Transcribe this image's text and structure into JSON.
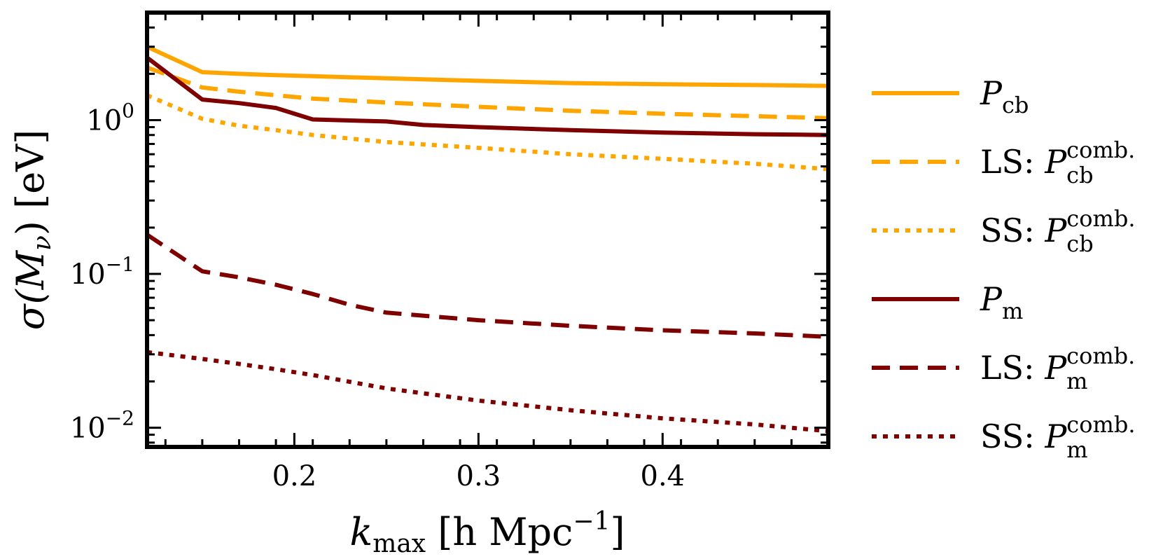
{
  "chart_data": {
    "type": "line",
    "xlabel_parts": {
      "k": "k",
      "max": "max",
      "unit": "[h Mpc",
      "exp": "−1",
      "close": "]"
    },
    "ylabel_parts": {
      "sigma": "σ(",
      "M": "M",
      "nu": "ν",
      "rest": ") [eV]"
    },
    "xlim": [
      0.12,
      0.49
    ],
    "ylim": [
      0.0075,
      5.0
    ],
    "yscale": "log",
    "x_ticks": [
      {
        "value": 0.2,
        "label": "0.2"
      },
      {
        "value": 0.3,
        "label": "0.3"
      },
      {
        "value": 0.4,
        "label": "0.4"
      }
    ],
    "y_ticks": [
      {
        "value": 1.0,
        "base": "10",
        "exp": "0"
      },
      {
        "value": 0.1,
        "base": "10",
        "exp": "−1"
      },
      {
        "value": 0.01,
        "base": "10",
        "exp": "−2"
      }
    ],
    "legend_position": "outside-right",
    "series": [
      {
        "name": "P_cb",
        "legend": {
          "prefix": "",
          "base": "P",
          "sub": "cb",
          "sup": ""
        },
        "color": "#FFA500",
        "dash": "solid",
        "x": [
          0.12,
          0.15,
          0.17,
          0.19,
          0.21,
          0.25,
          0.3,
          0.35,
          0.4,
          0.45,
          0.49
        ],
        "y": [
          3.0,
          2.05,
          2.0,
          1.96,
          1.93,
          1.87,
          1.8,
          1.74,
          1.71,
          1.69,
          1.67
        ]
      },
      {
        "name": "LS: P_cb^comb.",
        "legend": {
          "prefix": "LS: ",
          "base": "P",
          "sub": "cb",
          "sup": "comb."
        },
        "color": "#FFA500",
        "dash": "dashed",
        "x": [
          0.12,
          0.15,
          0.17,
          0.19,
          0.21,
          0.25,
          0.3,
          0.35,
          0.4,
          0.45,
          0.49
        ],
        "y": [
          2.2,
          1.63,
          1.53,
          1.45,
          1.38,
          1.3,
          1.22,
          1.15,
          1.1,
          1.06,
          1.03
        ]
      },
      {
        "name": "SS: P_cb^comb.",
        "legend": {
          "prefix": "SS: ",
          "base": "P",
          "sub": "cb",
          "sup": "comb."
        },
        "color": "#FFA500",
        "dash": "dotted",
        "x": [
          0.12,
          0.15,
          0.17,
          0.19,
          0.21,
          0.25,
          0.3,
          0.35,
          0.4,
          0.45,
          0.49
        ],
        "y": [
          1.45,
          1.02,
          0.92,
          0.86,
          0.8,
          0.72,
          0.66,
          0.6,
          0.56,
          0.52,
          0.48
        ]
      },
      {
        "name": "P_m",
        "legend": {
          "prefix": "",
          "base": "P",
          "sub": "m",
          "sup": ""
        },
        "color": "#7E0000",
        "dash": "solid",
        "x": [
          0.12,
          0.15,
          0.17,
          0.19,
          0.21,
          0.25,
          0.27,
          0.3,
          0.35,
          0.4,
          0.45,
          0.49
        ],
        "y": [
          2.55,
          1.36,
          1.29,
          1.2,
          1.01,
          0.98,
          0.93,
          0.9,
          0.86,
          0.83,
          0.81,
          0.8
        ]
      },
      {
        "name": "LS: P_m^comb.",
        "legend": {
          "prefix": "LS: ",
          "base": "P",
          "sub": "m",
          "sup": "comb."
        },
        "color": "#7E0000",
        "dash": "dashed",
        "x": [
          0.12,
          0.15,
          0.17,
          0.19,
          0.21,
          0.23,
          0.25,
          0.3,
          0.35,
          0.4,
          0.45,
          0.49
        ],
        "y": [
          0.18,
          0.104,
          0.095,
          0.085,
          0.074,
          0.063,
          0.056,
          0.05,
          0.046,
          0.043,
          0.041,
          0.039
        ]
      },
      {
        "name": "SS: P_m^comb.",
        "legend": {
          "prefix": "SS: ",
          "base": "P",
          "sub": "m",
          "sup": "comb."
        },
        "color": "#7E0000",
        "dash": "dotted",
        "x": [
          0.12,
          0.15,
          0.17,
          0.19,
          0.21,
          0.25,
          0.3,
          0.35,
          0.4,
          0.45,
          0.49
        ],
        "y": [
          0.031,
          0.028,
          0.026,
          0.024,
          0.022,
          0.018,
          0.015,
          0.013,
          0.0115,
          0.0105,
          0.0095
        ]
      }
    ]
  }
}
